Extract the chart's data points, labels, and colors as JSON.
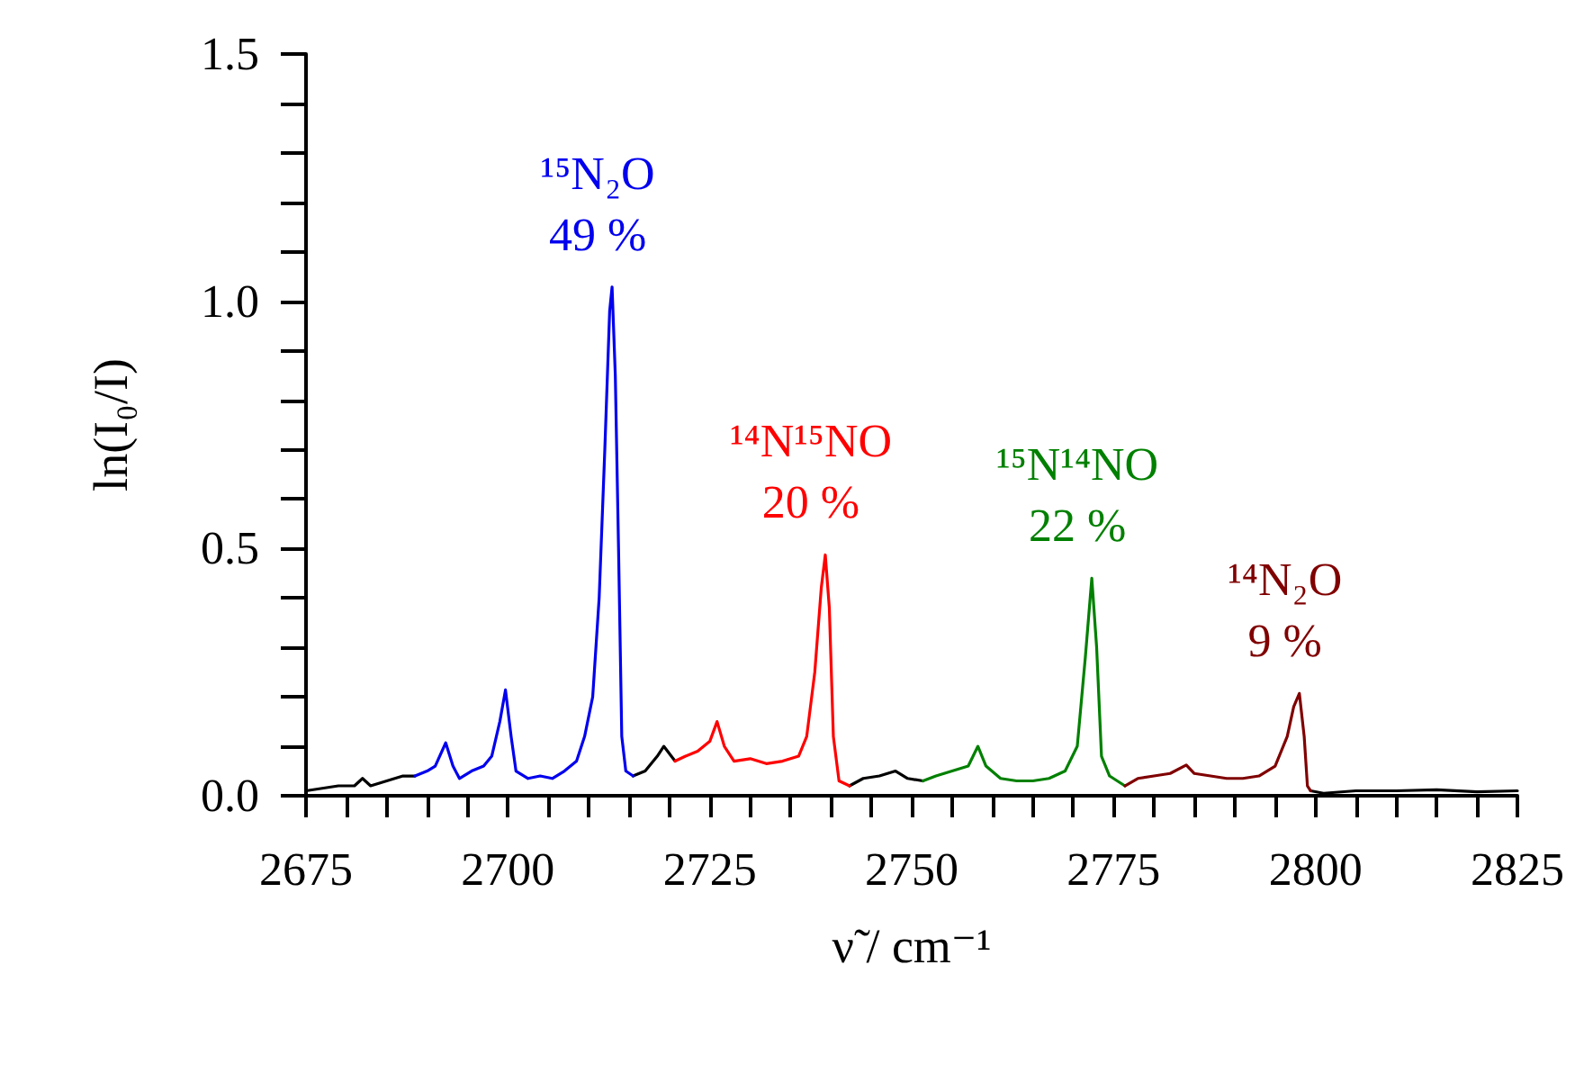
{
  "chart_data": {
    "type": "line",
    "xlabel": "ν̃ / cm⁻¹",
    "ylabel": "ln(I₀/I)",
    "xlim": [
      2675,
      2825
    ],
    "xticks": [
      2675,
      {
        "value": 2680,
        "label": null
      },
      {
        "value": 2685,
        "label": null
      },
      {
        "value": 2690,
        "label": null
      },
      {
        "value": 2695,
        "label": null
      },
      2700,
      {
        "value": 2705,
        "label": null
      },
      {
        "value": 2710,
        "label": null
      },
      {
        "value": 2715,
        "label": null
      },
      {
        "value": 2720,
        "label": null
      },
      2725,
      {
        "value": 2730,
        "label": null
      },
      {
        "value": 2735,
        "label": null
      },
      {
        "value": 2740,
        "label": null
      },
      {
        "value": 2745,
        "label": null
      },
      2750,
      {
        "value": 2755,
        "label": null
      },
      {
        "value": 2760,
        "label": null
      },
      {
        "value": 2765,
        "label": null
      },
      {
        "value": 2770,
        "label": null
      },
      2775,
      {
        "value": 2780,
        "label": null
      },
      {
        "value": 2785,
        "label": null
      },
      {
        "value": 2790,
        "label": null
      },
      {
        "value": 2795,
        "label": null
      },
      2800,
      {
        "value": 2805,
        "label": null
      },
      {
        "value": 2810,
        "label": null
      },
      {
        "value": 2815,
        "label": null
      },
      {
        "value": 2820,
        "label": null
      },
      2825
    ],
    "ylim": [
      0,
      1.5
    ],
    "yticks": [
      {
        "value": 0,
        "label": "0.0"
      },
      {
        "value": 0.1,
        "label": null
      },
      {
        "value": 0.2,
        "label": null
      },
      {
        "value": 0.3,
        "label": null
      },
      {
        "value": 0.4,
        "label": null
      },
      {
        "value": 0.5,
        "label": "0.5"
      },
      {
        "value": 0.6,
        "label": null
      },
      {
        "value": 0.7,
        "label": null
      },
      {
        "value": 0.8,
        "label": null
      },
      {
        "value": 0.9,
        "label": null
      },
      {
        "value": 1.0,
        "label": "1.0"
      },
      {
        "value": 1.1,
        "label": null
      },
      {
        "value": 1.2,
        "label": null
      },
      {
        "value": 1.3,
        "label": null
      },
      {
        "value": 1.4,
        "label": null
      },
      {
        "value": 1.5,
        "label": "1.5"
      }
    ],
    "grid": false,
    "marker": "none",
    "line_style": "solid",
    "series": [
      {
        "color": "#000000",
        "x": [
          2675,
          2677,
          2679,
          2681,
          2682,
          2683,
          2685,
          2687,
          2688.5,
          2702,
          2715.5,
          2717,
          2718.5,
          2719.3,
          2720,
          2720.7,
          2731,
          2742.3,
          2744,
          2746,
          2748,
          2749.5,
          2751.4,
          2775,
          2799.4,
          2801,
          2805,
          2810,
          2815,
          2820,
          2825
        ],
        "values": [
          0.01,
          0.015,
          0.02,
          0.02,
          0.035,
          0.02,
          0.03,
          0.04,
          0.04,
          null,
          0.04,
          0.05,
          0.08,
          0.1,
          0.085,
          0.07,
          null,
          0.02,
          0.035,
          0.04,
          0.05,
          0.035,
          0.03,
          null,
          0.01,
          0.005,
          0.01,
          0.01,
          0.012,
          0.008,
          0.01
        ]
      },
      {
        "color": "#0000ee",
        "x": [
          2688.5,
          2690,
          2691,
          2692.3,
          2693.2,
          2694,
          2695.5,
          2697,
          2698,
          2699,
          2699.7,
          2700.4,
          2701,
          2702.5,
          2704,
          2705.5,
          2707,
          2708.5,
          2709.5,
          2710.5,
          2711.3,
          2712,
          2712.6,
          2712.9,
          2713.3,
          2713.7,
          2714.1,
          2714.6,
          2715.5
        ],
        "values": [
          0.04,
          0.05,
          0.06,
          0.107,
          0.06,
          0.035,
          0.05,
          0.06,
          0.08,
          0.15,
          0.214,
          0.12,
          0.05,
          0.035,
          0.04,
          0.035,
          0.05,
          0.07,
          0.12,
          0.2,
          0.4,
          0.7,
          0.98,
          1.029,
          0.85,
          0.5,
          0.12,
          0.05,
          0.04
        ]
      },
      {
        "color": "#ff0000",
        "x": [
          2720.7,
          2722,
          2723.5,
          2725,
          2725.9,
          2726.8,
          2728,
          2730,
          2732,
          2734,
          2736,
          2737,
          2738,
          2738.8,
          2739.3,
          2739.8,
          2740.3,
          2741,
          2742.3
        ],
        "values": [
          0.07,
          0.08,
          0.09,
          0.11,
          0.15,
          0.1,
          0.07,
          0.075,
          0.065,
          0.07,
          0.08,
          0.12,
          0.25,
          0.42,
          0.487,
          0.38,
          0.12,
          0.03,
          0.02
        ]
      },
      {
        "color": "#008000",
        "x": [
          2751.4,
          2753,
          2755,
          2757,
          2758.2,
          2759.2,
          2761,
          2763,
          2765,
          2767,
          2769,
          2770.5,
          2771.5,
          2772.3,
          2772.9,
          2773.5,
          2774.5,
          2776.4
        ],
        "values": [
          0.03,
          0.04,
          0.05,
          0.06,
          0.1,
          0.06,
          0.035,
          0.03,
          0.03,
          0.035,
          0.05,
          0.1,
          0.28,
          0.44,
          0.3,
          0.08,
          0.04,
          0.02
        ]
      },
      {
        "color": "#800000",
        "x": [
          2776.4,
          2778,
          2780,
          2782,
          2784,
          2785,
          2787,
          2789,
          2791,
          2793,
          2795,
          2796.5,
          2797.3,
          2798,
          2798.6,
          2799,
          2799.4
        ],
        "values": [
          0.02,
          0.035,
          0.04,
          0.045,
          0.062,
          0.045,
          0.04,
          0.035,
          0.035,
          0.04,
          0.06,
          0.12,
          0.18,
          0.207,
          0.12,
          0.02,
          0.01
        ]
      }
    ],
    "annotations": [
      {
        "text": "¹⁵N₂O\n49 %",
        "x": 2712.9,
        "y": 1.029
      },
      {
        "text": "¹⁴N¹⁵NO\n20 %",
        "x": 2739.3,
        "y": 0.487
      },
      {
        "text": "¹⁵N¹⁴NO\n22 %",
        "x": 2772.3,
        "y": 0.44
      },
      {
        "text": "¹⁴N₂O\n9 %",
        "x": 2798,
        "y": 0.207
      }
    ]
  }
}
